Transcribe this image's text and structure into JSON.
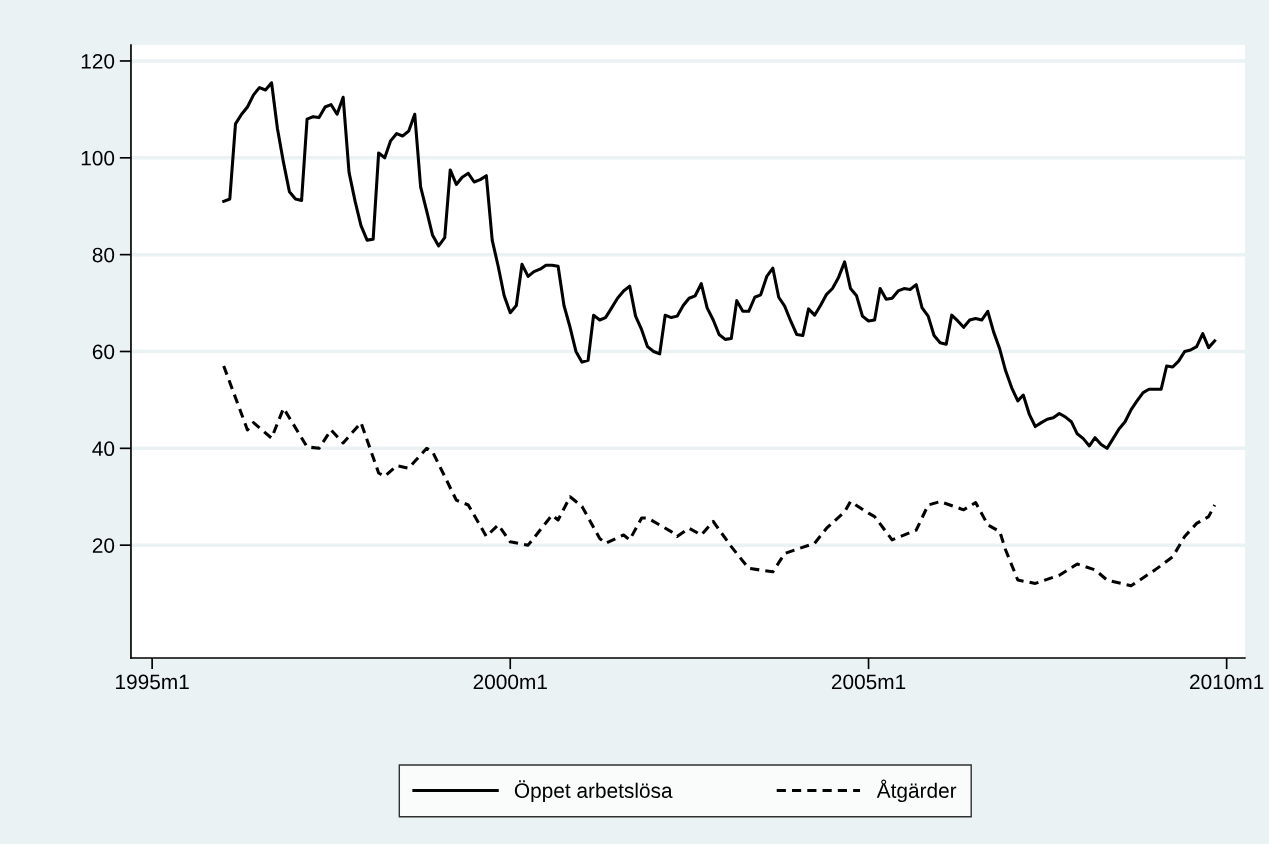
{
  "chart_data": {
    "type": "line",
    "xlim": [
      "1994-09-15",
      "2010-04-04"
    ],
    "ylim": [
      -3.3,
      123.3
    ],
    "xticks": [
      {
        "value": "1995-01",
        "label": "1995m1"
      },
      {
        "value": "2000-01",
        "label": "2000m1"
      },
      {
        "value": "2005-01",
        "label": "2005m1"
      },
      {
        "value": "2010-01",
        "label": "2010m1"
      }
    ],
    "yticks": [
      20,
      40,
      60,
      80,
      100,
      120
    ],
    "grid": "y",
    "legend": "bottom",
    "marker": "none",
    "series": [
      {
        "name": "Öppet arbetslösa",
        "color": "#000000",
        "line_style": "solid",
        "x": [
          "1996-01",
          "1996-02",
          "1996-03",
          "1996-04",
          "1996-05",
          "1996-06",
          "1996-07",
          "1996-08",
          "1996-09",
          "1996-10",
          "1996-11",
          "1996-12",
          "1997-01",
          "1997-02",
          "1997-03",
          "1997-04",
          "1997-05",
          "1997-06",
          "1997-07",
          "1997-08",
          "1997-09",
          "1997-10",
          "1997-11",
          "1997-12",
          "1998-01",
          "1998-02",
          "1998-03",
          "1998-04",
          "1998-05",
          "1998-06",
          "1998-07",
          "1998-08",
          "1998-09",
          "1998-10",
          "1998-11",
          "1998-12",
          "1999-01",
          "1999-02",
          "1999-03",
          "1999-04",
          "1999-05",
          "1999-06",
          "1999-07",
          "1999-08",
          "1999-09",
          "1999-10",
          "1999-11",
          "1999-12",
          "2000-01",
          "2000-02",
          "2000-03",
          "2000-04",
          "2000-05",
          "2000-06",
          "2000-07",
          "2000-08",
          "2000-09",
          "2000-10",
          "2000-11",
          "2000-12",
          "2001-01",
          "2001-02",
          "2001-03",
          "2001-04",
          "2001-05",
          "2001-06",
          "2001-07",
          "2001-08",
          "2001-09",
          "2001-10",
          "2001-11",
          "2001-12",
          "2002-01",
          "2002-02",
          "2002-03",
          "2002-04",
          "2002-05",
          "2002-06",
          "2002-07",
          "2002-08",
          "2002-09",
          "2002-10",
          "2002-11",
          "2002-12",
          "2003-01",
          "2003-02",
          "2003-03",
          "2003-04",
          "2003-05",
          "2003-06",
          "2003-07",
          "2003-08",
          "2003-09",
          "2003-10",
          "2003-11",
          "2003-12",
          "2004-01",
          "2004-02",
          "2004-03",
          "2004-04",
          "2004-05",
          "2004-06",
          "2004-07",
          "2004-08",
          "2004-09",
          "2004-10",
          "2004-11",
          "2004-12",
          "2005-01",
          "2005-02",
          "2005-03",
          "2005-04",
          "2005-05",
          "2005-06",
          "2005-07",
          "2005-08",
          "2005-09",
          "2005-10",
          "2005-11",
          "2005-12",
          "2006-01",
          "2006-02",
          "2006-03",
          "2006-04",
          "2006-05",
          "2006-06",
          "2006-07",
          "2006-08",
          "2006-09",
          "2006-10",
          "2006-11",
          "2006-12",
          "2007-01",
          "2007-02",
          "2007-03",
          "2007-04",
          "2007-05",
          "2007-06",
          "2007-07",
          "2007-08",
          "2007-09",
          "2007-10",
          "2007-11",
          "2007-12",
          "2008-01",
          "2008-02",
          "2008-03",
          "2008-04",
          "2008-05",
          "2008-06",
          "2008-07",
          "2008-08",
          "2008-09",
          "2008-10",
          "2008-11",
          "2008-12",
          "2009-01",
          "2009-02",
          "2009-03",
          "2009-04",
          "2009-05",
          "2009-06",
          "2009-07",
          "2009-08",
          "2009-09",
          "2009-10",
          "2009-11"
        ],
        "values": [
          91,
          91.5,
          107,
          109,
          110.5,
          113,
          114.5,
          114,
          115.5,
          106,
          99,
          93,
          91.5,
          91.2,
          108,
          108.5,
          108.3,
          110.5,
          111,
          109,
          112.5,
          97,
          91,
          86,
          83,
          83.2,
          101,
          100,
          103.5,
          105,
          104.5,
          105.5,
          109,
          94,
          89,
          84,
          81.8,
          83.5,
          97.5,
          94.5,
          96,
          96.8,
          95,
          95.5,
          96.3,
          83,
          77.5,
          71.5,
          68,
          69.5,
          78,
          75.5,
          76.5,
          77,
          77.8,
          77.8,
          77.6,
          69.5,
          65,
          60,
          57.8,
          58.2,
          67.5,
          66.5,
          67,
          69,
          71,
          72.5,
          73.5,
          67.3,
          64.5,
          61,
          60,
          59.5,
          67.5,
          67,
          67.3,
          69.5,
          71,
          71.5,
          74,
          69,
          66.5,
          63.5,
          62.5,
          62.7,
          70.5,
          68.3,
          68.3,
          71.2,
          71.7,
          75.5,
          77.2,
          71.2,
          69.3,
          66.3,
          63.5,
          63.3,
          68.8,
          67.5,
          69.5,
          71.8,
          73,
          75.3,
          78.5,
          73,
          71.5,
          67.3,
          66.3,
          66.5,
          73,
          70.8,
          71,
          72.5,
          73,
          72.8,
          73.8,
          69,
          67.3,
          63.3,
          61.8,
          61.5,
          67.5,
          66.3,
          65,
          66.5,
          66.8,
          66.5,
          68.3,
          64,
          60.5,
          56,
          52.5,
          49.8,
          51,
          47,
          44.5,
          45.3,
          46,
          46.3,
          47.2,
          46.5,
          45.5,
          43,
          42,
          40.5,
          42.2,
          40.8,
          40,
          42,
          44,
          45.5,
          48,
          49.8,
          51.5,
          52.2,
          52.2,
          52.2,
          57,
          56.8,
          58,
          60,
          60.3,
          61,
          63.7,
          60.8,
          62.2
        ]
      },
      {
        "name": "Åtgärder",
        "color": "#000000",
        "line_style": "dashed",
        "x": [
          "1996-01",
          "1996-05",
          "1996-06",
          "1996-09",
          "1996-11",
          "1997-03",
          "1997-05",
          "1997-07",
          "1997-09",
          "1997-12",
          "1998-03",
          "1998-04",
          "1998-06",
          "1998-08",
          "1998-11",
          "1998-12",
          "1999-04",
          "1999-06",
          "1999-09",
          "1999-11",
          "2000-01",
          "2000-04",
          "2000-08",
          "2000-09",
          "2000-11",
          "2001-01",
          "2001-04",
          "2001-05",
          "2001-08",
          "2001-09",
          "2001-11",
          "2001-12",
          "2002-04",
          "2002-05",
          "2002-07",
          "2002-09",
          "2002-11",
          "2003-02",
          "2003-05",
          "2003-09",
          "2003-11",
          "2004-04",
          "2004-06",
          "2004-09",
          "2004-10",
          "2005-01",
          "2005-02",
          "2005-05",
          "2005-09",
          "2005-11",
          "2006-01",
          "2006-05",
          "2006-07",
          "2006-09",
          "2006-11",
          "2006-12",
          "2007-02",
          "2007-05",
          "2007-09",
          "2007-12",
          "2008-03",
          "2008-05",
          "2008-09",
          "2009-01",
          "2009-04",
          "2009-06",
          "2009-08",
          "2009-10",
          "2009-11"
        ],
        "values": [
          57.0,
          43.8,
          45.3,
          42.1,
          48.3,
          40.3,
          40.0,
          43.8,
          41.1,
          45.3,
          34.9,
          34.2,
          36.4,
          35.9,
          40.0,
          39.3,
          29.3,
          28.3,
          21.8,
          24.2,
          20.7,
          20.0,
          26.2,
          25.2,
          30.0,
          28.0,
          21.4,
          20.4,
          22.1,
          21.1,
          25.6,
          25.6,
          22.8,
          21.8,
          23.5,
          22.1,
          24.9,
          19.7,
          15.2,
          14.5,
          18.3,
          20.4,
          23.5,
          26.9,
          29.0,
          26.6,
          25.9,
          21.1,
          23.1,
          28.3,
          29.0,
          27.3,
          28.8,
          24.2,
          22.8,
          19.0,
          12.8,
          12.1,
          13.8,
          16.1,
          14.9,
          12.8,
          11.6,
          14.9,
          17.6,
          21.8,
          24.5,
          25.9,
          28.3
        ]
      }
    ]
  }
}
